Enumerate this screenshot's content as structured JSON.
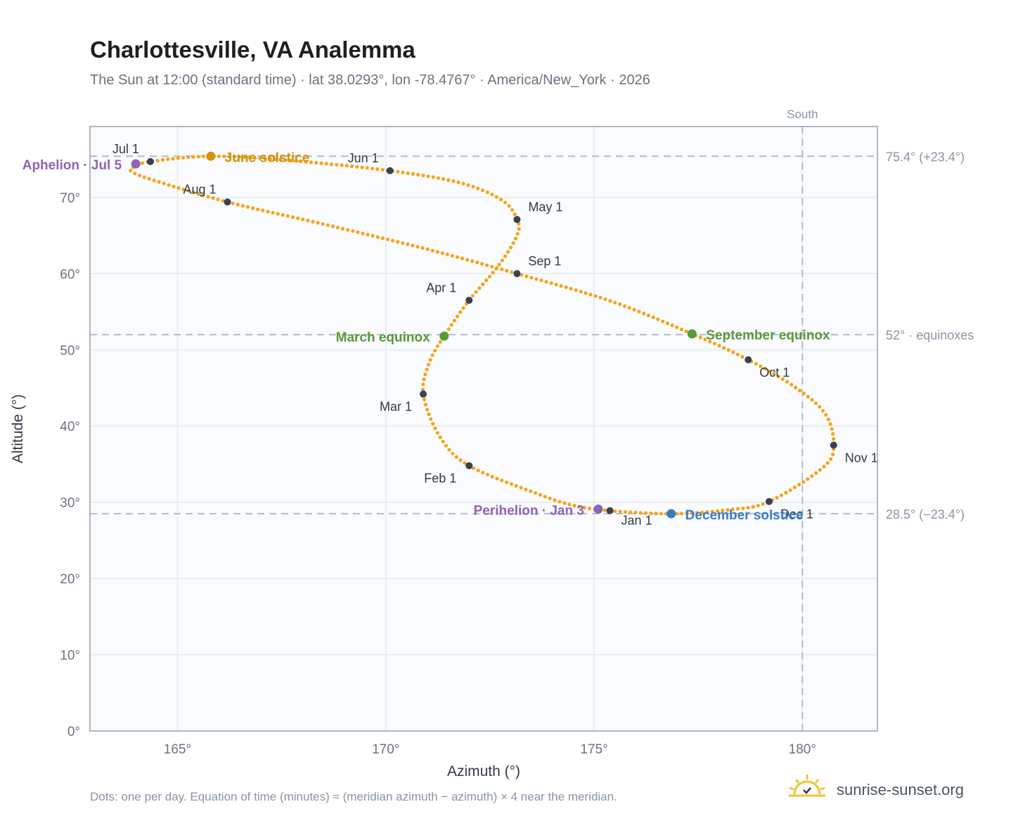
{
  "title": "Charlottesville, VA Analemma",
  "subtitle": "The Sun at 12:00 (standard time) · lat 38.0293°, lon -78.4767° · America/New_York · 2026",
  "footnote": "Dots: one per day. Equation of time (minutes) ≈ (meridian azimuth − azimuth) × 4 near the meridian.",
  "brand": "sunrise-sunset.org",
  "colors": {
    "curve": "#f2a51e",
    "month_dot": "#374151",
    "solstice_june": "#d4910a",
    "solstice_dec": "#3b7bc8",
    "equinox": "#5a9a3a",
    "apsis": "#8e63b5",
    "ref_line": "#b5bcc6",
    "grid": "#e6e9ee",
    "plot_bg": "#f9fbfd",
    "frame": "#98a2b0"
  },
  "chart_data": {
    "type": "scatter",
    "xlabel": "Azimuth (°)",
    "ylabel": "Altitude (°)",
    "xlim": [
      162.9,
      181.8
    ],
    "ylim": [
      0,
      79.3
    ],
    "xticks": [
      165,
      170,
      175,
      180
    ],
    "xtick_labels": [
      "165°",
      "170°",
      "175°",
      "180°"
    ],
    "yticks": [
      0,
      10,
      20,
      30,
      40,
      50,
      60,
      70
    ],
    "ytick_labels": [
      "0°",
      "10°",
      "20°",
      "30°",
      "40°",
      "50°",
      "60°",
      "70°"
    ],
    "grid": true,
    "meridian": {
      "x": 180,
      "label": "South"
    },
    "reference_lines": [
      {
        "y": 75.4,
        "label": "75.4° (+23.4°)"
      },
      {
        "y": 52,
        "label": "52° · equinoxes"
      },
      {
        "y": 28.5,
        "label": "28.5° (−23.4°)"
      }
    ],
    "month_points": [
      {
        "label": "Jan 1",
        "x": 175.38,
        "y": 28.9
      },
      {
        "label": "Feb 1",
        "x": 172.0,
        "y": 34.8
      },
      {
        "label": "Mar 1",
        "x": 170.9,
        "y": 44.2
      },
      {
        "label": "Apr 1",
        "x": 172.0,
        "y": 56.5
      },
      {
        "label": "May 1",
        "x": 173.15,
        "y": 67.1
      },
      {
        "label": "Jun 1",
        "x": 170.1,
        "y": 73.5
      },
      {
        "label": "Jul 1",
        "x": 164.35,
        "y": 74.7
      },
      {
        "label": "Aug 1",
        "x": 166.2,
        "y": 69.4
      },
      {
        "label": "Sep 1",
        "x": 173.15,
        "y": 60.0
      },
      {
        "label": "Oct 1",
        "x": 178.7,
        "y": 48.7
      },
      {
        "label": "Nov 1",
        "x": 180.75,
        "y": 37.5
      },
      {
        "label": "Dec 1",
        "x": 179.2,
        "y": 30.1
      }
    ],
    "events": [
      {
        "label": "June solstice",
        "x": 165.8,
        "y": 75.4,
        "kind": "solstice_june"
      },
      {
        "label": "December solstice",
        "x": 176.85,
        "y": 28.5,
        "kind": "solstice_dec"
      },
      {
        "label": "March equinox",
        "x": 171.4,
        "y": 51.8,
        "kind": "equinox"
      },
      {
        "label": "September equinox",
        "x": 177.35,
        "y": 52.1,
        "kind": "equinox"
      },
      {
        "label": "Aphelion · Jul 5",
        "x": 164.0,
        "y": 74.4,
        "kind": "apsis"
      },
      {
        "label": "Perihelion · Jan 3",
        "x": 175.1,
        "y": 29.1,
        "kind": "apsis"
      }
    ],
    "path_note_daily_dots": "one per day",
    "series": [
      {
        "points": [
          [
            175.38,
            28.9
          ],
          [
            174.5,
            29.6
          ],
          [
            173.6,
            31.2
          ],
          [
            172.0,
            34.8
          ],
          [
            171.3,
            38.6
          ],
          [
            170.9,
            44.2
          ],
          [
            171.05,
            48.4
          ],
          [
            171.4,
            51.8
          ],
          [
            172.0,
            56.5
          ],
          [
            172.7,
            61.0
          ],
          [
            173.15,
            65.0
          ],
          [
            173.15,
            67.1
          ],
          [
            172.8,
            69.6
          ],
          [
            171.8,
            71.9
          ],
          [
            170.1,
            73.5
          ],
          [
            167.8,
            74.8
          ],
          [
            165.8,
            75.4
          ],
          [
            164.35,
            74.7
          ],
          [
            163.95,
            74.0
          ],
          [
            163.9,
            73.4
          ],
          [
            164.4,
            72.3
          ],
          [
            166.2,
            69.4
          ],
          [
            168.5,
            66.5
          ],
          [
            171.0,
            63.2
          ],
          [
            173.15,
            60.0
          ],
          [
            175.4,
            56.4
          ],
          [
            177.35,
            52.1
          ],
          [
            178.7,
            48.7
          ],
          [
            179.8,
            45.2
          ],
          [
            180.55,
            41.6
          ],
          [
            180.75,
            37.5
          ],
          [
            180.5,
            34.6
          ],
          [
            179.2,
            30.1
          ],
          [
            178.2,
            29.0
          ],
          [
            176.85,
            28.5
          ],
          [
            175.38,
            28.9
          ]
        ]
      }
    ]
  }
}
